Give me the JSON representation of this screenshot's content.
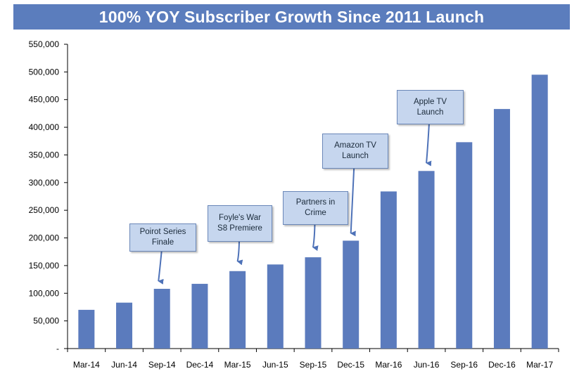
{
  "colors": {
    "bar": "#5b7bbd",
    "title_bg": "#5b7dbd",
    "annotation_bg": "#c6d6ee",
    "arrow": "#4e72b8"
  },
  "chart_data": {
    "type": "bar",
    "title": "100% YOY Subscriber Growth Since 2011 Launch",
    "xlabel": "",
    "ylabel": "",
    "ylim": [
      0,
      550000
    ],
    "grid": false,
    "legend": "none",
    "categories": [
      "Mar-14",
      "Jun-14",
      "Sep-14",
      "Dec-14",
      "Mar-15",
      "Jun-15",
      "Sep-15",
      "Dec-15",
      "Mar-16",
      "Jun-16",
      "Sep-16",
      "Dec-16",
      "Mar-17"
    ],
    "values": [
      70000,
      83000,
      108000,
      117000,
      140000,
      152000,
      165000,
      195000,
      284000,
      321000,
      373000,
      433000,
      495000
    ],
    "y_ticks": [
      "-",
      "50,000",
      "100,000",
      "150,000",
      "200,000",
      "250,000",
      "300,000",
      "350,000",
      "400,000",
      "450,000",
      "500,000",
      "550,000"
    ],
    "annotations": [
      {
        "text": "Poirot Series\nFinale",
        "category": "Sep-14"
      },
      {
        "text": "Foyle's War\nS8 Premiere",
        "category": "Mar-15"
      },
      {
        "text": "Partners in\nCrime",
        "category": "Sep-15"
      },
      {
        "text": "Amazon TV\nLaunch",
        "category": "Dec-15"
      },
      {
        "text": "Apple TV\nLaunch",
        "category": "Jun-16"
      }
    ]
  }
}
